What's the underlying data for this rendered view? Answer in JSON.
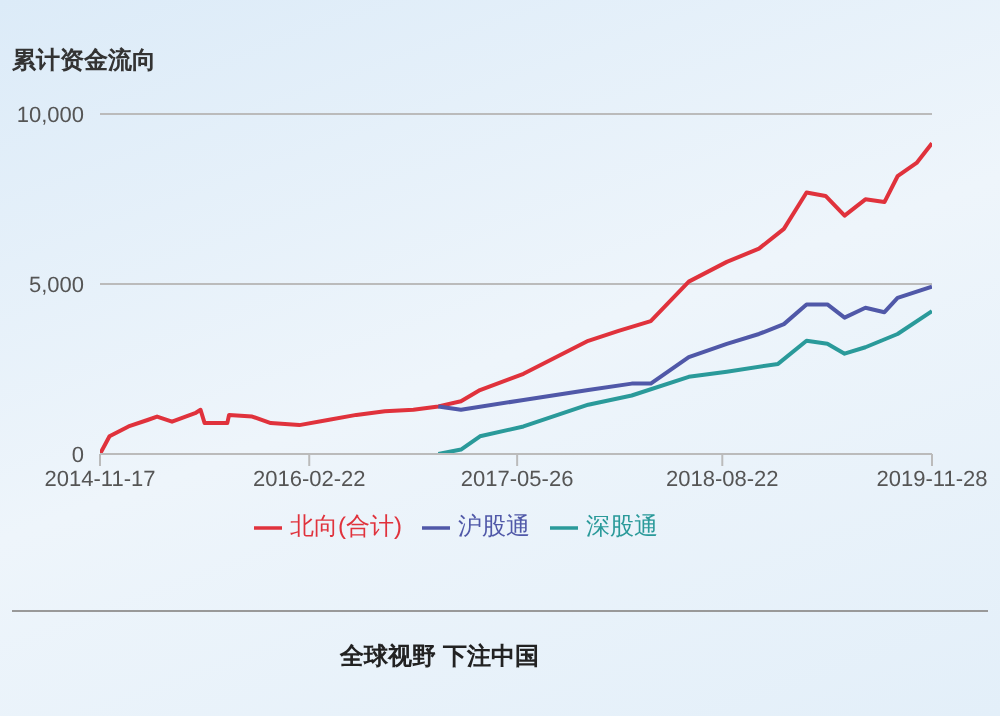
{
  "chart_data": {
    "type": "line",
    "title": "累计资金流向",
    "xlim": [
      "2014-11-17",
      "2019-11-28"
    ],
    "xticks": [
      "2014-11-17",
      "2016-02-22",
      "2017-05-26",
      "2018-08-22",
      "2019-11-28"
    ],
    "ylim": [
      0,
      10000
    ],
    "yticks": [
      0,
      {
        "value": 5000,
        "label": "5,000"
      },
      {
        "value": 10000,
        "label": "10,000"
      }
    ],
    "grid": "y",
    "legend": "bottom",
    "marker": "none",
    "line_style": "solid",
    "series": [
      {
        "name": "北向(合计)",
        "color": "#e0323c",
        "x": [
          "2014-11-17",
          "2014-12-08",
          "2015-01-19",
          "2015-03-02",
          "2015-03-23",
          "2015-04-25",
          "2015-05-25",
          "2015-06-15",
          "2015-06-27",
          "2015-07-06",
          "2015-08-25",
          "2015-08-29",
          "2015-10-19",
          "2015-11-29",
          "2016-01-31",
          "2016-04-03",
          "2016-06-05",
          "2016-08-07",
          "2016-10-09",
          "2016-12-03",
          "2017-01-22",
          "2017-03-05",
          "2017-06-09",
          "2017-10-30",
          "2018-01-05",
          "2018-03-17",
          "2018-06-09",
          "2018-09-01",
          "2018-11-11",
          "2019-01-05",
          "2019-02-24",
          "2019-04-07",
          "2019-05-19",
          "2019-07-04",
          "2019-08-15",
          "2019-09-13",
          "2019-10-25",
          "2019-11-28"
        ],
        "values": [
          0,
          520,
          810,
          1000,
          1100,
          950,
          1100,
          1200,
          1300,
          910,
          910,
          1150,
          1100,
          910,
          850,
          1000,
          1150,
          1260,
          1300,
          1400,
          1550,
          1880,
          2360,
          3330,
          3620,
          3910,
          5070,
          5650,
          6040,
          6620,
          7690,
          7590,
          7010,
          7490,
          7410,
          8170,
          8560,
          9140
        ]
      },
      {
        "name": "沪股通",
        "color": "#5058a8",
        "x": [
          "2016-12-03",
          "2017-01-22",
          "2017-06-09",
          "2017-10-30",
          "2018-02-03",
          "2018-03-17",
          "2018-06-09",
          "2018-09-01",
          "2018-11-11",
          "2019-01-05",
          "2019-02-24",
          "2019-04-11",
          "2019-05-19",
          "2019-07-04",
          "2019-08-15",
          "2019-09-13",
          "2019-11-28"
        ],
        "values": [
          1400,
          1300,
          1590,
          1880,
          2070,
          2070,
          2850,
          3240,
          3530,
          3820,
          4400,
          4400,
          4010,
          4300,
          4170,
          4590,
          4920
        ]
      },
      {
        "name": "深股通",
        "color": "#2a9a9a",
        "x": [
          "2016-12-03",
          "2017-01-22",
          "2017-03-05",
          "2017-06-09",
          "2017-10-30",
          "2018-02-03",
          "2018-06-09",
          "2018-09-01",
          "2018-12-23",
          "2019-02-24",
          "2019-04-11",
          "2019-05-19",
          "2019-07-04",
          "2019-09-13",
          "2019-11-28"
        ],
        "values": [
          0,
          130,
          520,
          810,
          1450,
          1720,
          2270,
          2420,
          2650,
          3330,
          3240,
          2950,
          3140,
          3530,
          4200
        ]
      }
    ],
    "annotations": [
      "全球视野 下注中国"
    ]
  }
}
